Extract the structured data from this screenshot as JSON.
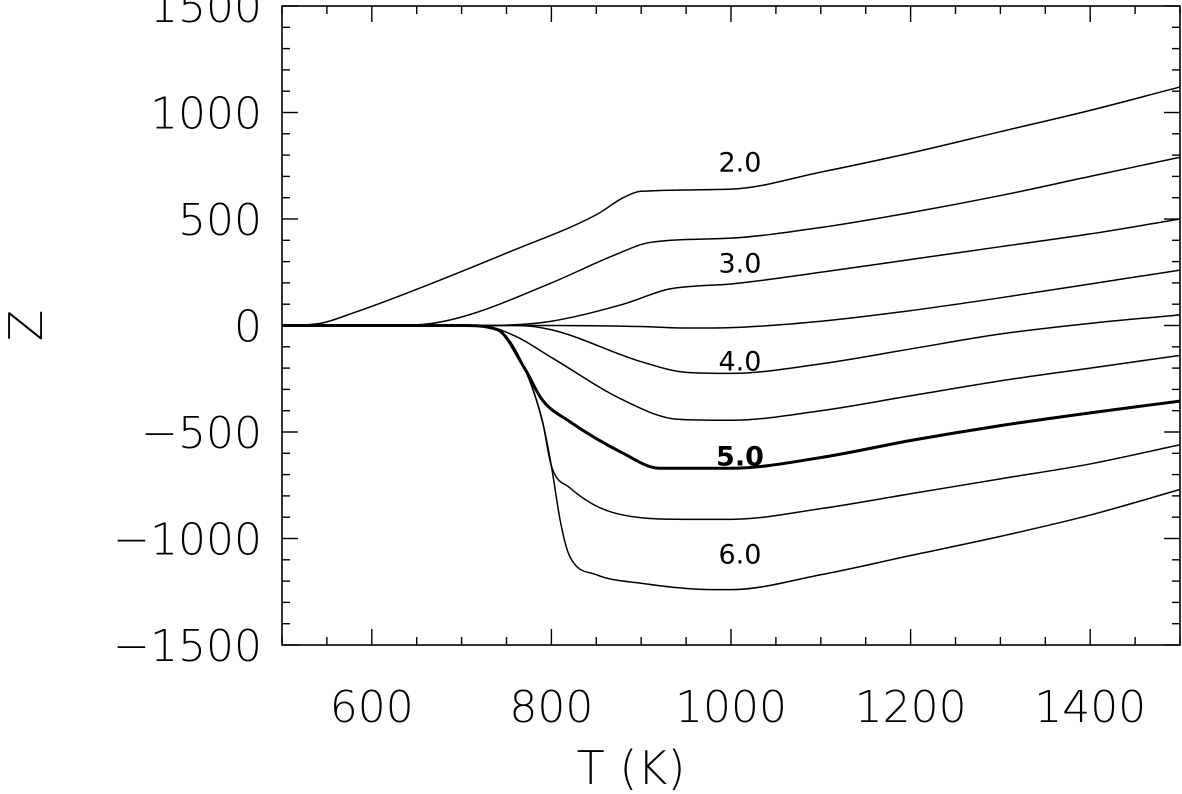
{
  "chart_data": {
    "type": "line",
    "title": "",
    "xlabel": "T (K)",
    "ylabel": "Z",
    "xlim": [
      500,
      1500
    ],
    "ylim": [
      -1500,
      1500
    ],
    "x_ticks": [
      600,
      800,
      1000,
      1200,
      1400
    ],
    "y_ticks": [
      -1500,
      -1000,
      -500,
      0,
      500,
      1000,
      1500
    ],
    "x_tick_labels": [
      "600",
      "800",
      "1000",
      "1200",
      "1400"
    ],
    "y_tick_labels": [
      "−1500",
      "−1000",
      "−500",
      "0",
      "500",
      "1000",
      "1500"
    ],
    "x_minor_step": 50,
    "y_minor_step": 100,
    "grid": false,
    "series": [
      {
        "label": "2.0",
        "label_at": [
          1010,
          770
        ],
        "bold": false,
        "points": [
          [
            500,
            0
          ],
          [
            540,
            8
          ],
          [
            580,
            60
          ],
          [
            650,
            170
          ],
          [
            750,
            340
          ],
          [
            850,
            520
          ],
          [
            880,
            600
          ],
          [
            900,
            630
          ],
          [
            1000,
            640
          ],
          [
            1100,
            720
          ],
          [
            1200,
            810
          ],
          [
            1300,
            910
          ],
          [
            1400,
            1010
          ],
          [
            1500,
            1120
          ]
        ]
      },
      {
        "label": "",
        "bold": false,
        "points": [
          [
            500,
            0
          ],
          [
            600,
            0
          ],
          [
            650,
            3
          ],
          [
            700,
            40
          ],
          [
            800,
            200
          ],
          [
            870,
            330
          ],
          [
            910,
            390
          ],
          [
            1000,
            410
          ],
          [
            1100,
            460
          ],
          [
            1200,
            530
          ],
          [
            1300,
            610
          ],
          [
            1400,
            700
          ],
          [
            1500,
            790
          ]
        ]
      },
      {
        "label": "3.0",
        "label_at": [
          1010,
          295
        ],
        "bold": false,
        "points": [
          [
            500,
            0
          ],
          [
            700,
            0
          ],
          [
            750,
            2
          ],
          [
            800,
            20
          ],
          [
            880,
            100
          ],
          [
            930,
            170
          ],
          [
            960,
            185
          ],
          [
            1000,
            195
          ],
          [
            1100,
            250
          ],
          [
            1200,
            310
          ],
          [
            1300,
            370
          ],
          [
            1400,
            430
          ],
          [
            1500,
            500
          ]
        ]
      },
      {
        "label": "",
        "bold": false,
        "points": [
          [
            500,
            0
          ],
          [
            800,
            0
          ],
          [
            900,
            -5
          ],
          [
            950,
            -12
          ],
          [
            1000,
            -10
          ],
          [
            1100,
            20
          ],
          [
            1200,
            70
          ],
          [
            1300,
            130
          ],
          [
            1400,
            195
          ],
          [
            1500,
            260
          ]
        ]
      },
      {
        "label": "4.0",
        "label_at": [
          1010,
          -165
        ],
        "bold": false,
        "points": [
          [
            500,
            0
          ],
          [
            760,
            0
          ],
          [
            800,
            -20
          ],
          [
            900,
            -170
          ],
          [
            950,
            -220
          ],
          [
            1000,
            -225
          ],
          [
            1100,
            -180
          ],
          [
            1200,
            -110
          ],
          [
            1300,
            -40
          ],
          [
            1400,
            10
          ],
          [
            1500,
            50
          ]
        ]
      },
      {
        "label": "",
        "bold": false,
        "points": [
          [
            500,
            0
          ],
          [
            720,
            0
          ],
          [
            760,
            -50
          ],
          [
            800,
            -150
          ],
          [
            880,
            -350
          ],
          [
            940,
            -440
          ],
          [
            1000,
            -445
          ],
          [
            1100,
            -400
          ],
          [
            1200,
            -330
          ],
          [
            1300,
            -260
          ],
          [
            1400,
            -200
          ],
          [
            1500,
            -140
          ]
        ]
      },
      {
        "label": "5.0",
        "label_at": [
          1010,
          -610
        ],
        "bold": true,
        "points": [
          [
            500,
            0
          ],
          [
            700,
            0
          ],
          [
            740,
            -20
          ],
          [
            770,
            -200
          ],
          [
            790,
            -350
          ],
          [
            820,
            -450
          ],
          [
            880,
            -600
          ],
          [
            920,
            -670
          ],
          [
            1000,
            -670
          ],
          [
            1100,
            -620
          ],
          [
            1200,
            -540
          ],
          [
            1300,
            -470
          ],
          [
            1400,
            -410
          ],
          [
            1500,
            -355
          ]
        ]
      },
      {
        "label": "",
        "bold": false,
        "points": [
          [
            500,
            0
          ],
          [
            700,
            0
          ],
          [
            740,
            -20
          ],
          [
            770,
            -200
          ],
          [
            790,
            -450
          ],
          [
            800,
            -660
          ],
          [
            820,
            -760
          ],
          [
            870,
            -880
          ],
          [
            950,
            -910
          ],
          [
            1000,
            -910
          ],
          [
            1100,
            -860
          ],
          [
            1200,
            -790
          ],
          [
            1300,
            -720
          ],
          [
            1400,
            -650
          ],
          [
            1500,
            -560
          ]
        ]
      },
      {
        "label": "6.0",
        "label_at": [
          1010,
          -1070
        ],
        "bold": false,
        "points": [
          [
            500,
            0
          ],
          [
            700,
            0
          ],
          [
            740,
            -20
          ],
          [
            770,
            -200
          ],
          [
            790,
            -450
          ],
          [
            800,
            -660
          ],
          [
            810,
            -920
          ],
          [
            820,
            -1080
          ],
          [
            850,
            -1170
          ],
          [
            900,
            -1210
          ],
          [
            980,
            -1240
          ],
          [
            1000,
            -1240
          ],
          [
            1100,
            -1170
          ],
          [
            1200,
            -1080
          ],
          [
            1300,
            -990
          ],
          [
            1400,
            -890
          ],
          [
            1500,
            -770
          ]
        ]
      }
    ]
  }
}
